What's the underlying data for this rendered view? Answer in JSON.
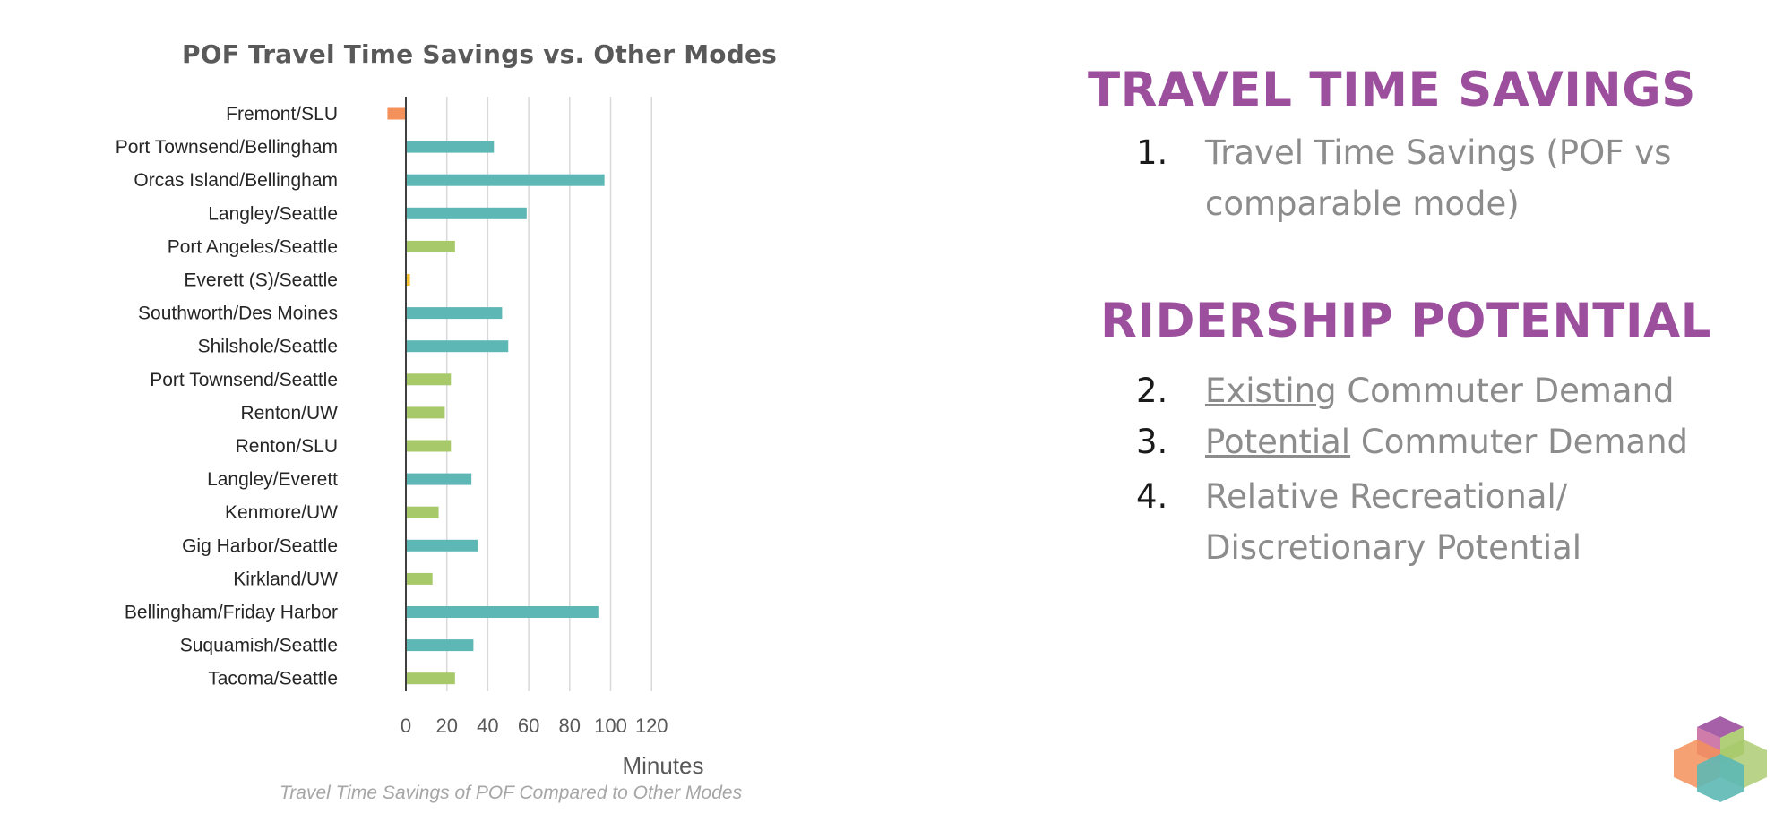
{
  "chart_data": {
    "type": "bar",
    "orientation": "horizontal",
    "title": "POF Travel Time Savings vs. Other Modes",
    "xlabel": "Minutes",
    "xlim": [
      -10,
      120
    ],
    "xticks": [
      0,
      20,
      40,
      60,
      80,
      100,
      120
    ],
    "grid": true,
    "legend": "none",
    "categories": [
      "Fremont/SLU",
      "Port Townsend/Bellingham",
      "Orcas Island/Bellingham",
      "Langley/Seattle",
      "Port Angeles/Seattle",
      "Everett (S)/Seattle",
      "Southworth/Des Moines",
      "Shilshole/Seattle",
      "Port Townsend/Seattle",
      "Renton/UW",
      "Renton/SLU",
      "Langley/Everett",
      "Kenmore/UW",
      "Gig Harbor/Seattle",
      "Kirkland/UW",
      "Bellingham/Friday Harbor",
      "Suquamish/Seattle",
      "Tacoma/Seattle"
    ],
    "values": [
      -9,
      43,
      97,
      59,
      24,
      2,
      47,
      50,
      22,
      19,
      22,
      32,
      16,
      35,
      13,
      94,
      33,
      24
    ],
    "bar_colors": [
      "#f4915a",
      "#5db8b5",
      "#5db8b5",
      "#5db8b5",
      "#a8c96a",
      "#f5c12e",
      "#5db8b5",
      "#5db8b5",
      "#a8c96a",
      "#a8c96a",
      "#a8c96a",
      "#5db8b5",
      "#a8c96a",
      "#5db8b5",
      "#a8c96a",
      "#5db8b5",
      "#5db8b5",
      "#a8c96a"
    ],
    "caption": "Travel Time Savings of POF Compared to Other Modes"
  },
  "panel": {
    "heading1": "TRAVEL TIME SAVINGS",
    "heading2": "RIDERSHIP POTENTIAL",
    "items": [
      {
        "num": "1.",
        "line1": "Travel Time Savings (POF vs",
        "line2": "comparable mode)"
      },
      {
        "num": "2.",
        "underlined": "Existing",
        "rest": " Commuter Demand"
      },
      {
        "num": "3.",
        "underlined": "Potential",
        "rest": " Commuter Demand"
      },
      {
        "num": "4.",
        "line1": "Relative Recreational/",
        "line2": "Discretionary Potential"
      }
    ],
    "accent_color": "#9b4f9d"
  },
  "logo": {
    "icon": "hexagon-cube-logo-icon",
    "colors": [
      "#9b4f9d",
      "#f4915a",
      "#a8c96a",
      "#5db8b5"
    ]
  }
}
